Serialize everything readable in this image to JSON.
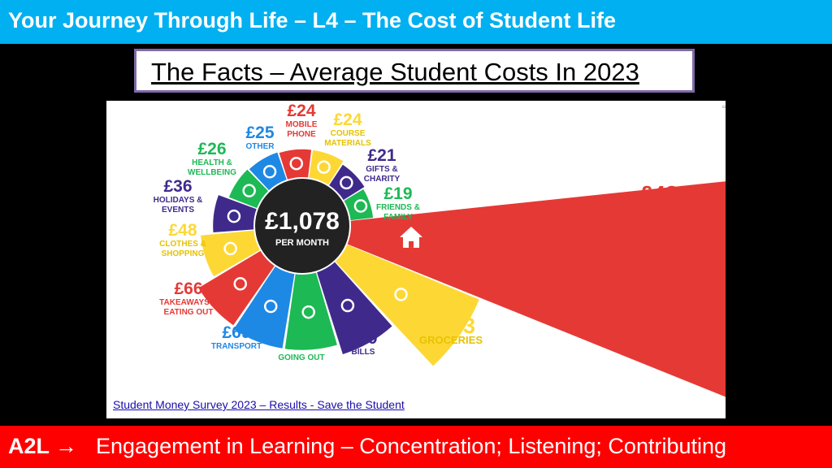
{
  "header": {
    "title": "Your Journey Through Life –  L4 – The Cost of Student Life",
    "subtitle": "The Facts – Average Student Costs In 2023",
    "bg_color": "#00b0f0"
  },
  "infographic": {
    "total": {
      "amount": "£1,078",
      "label": "PER MONTH"
    },
    "segments": [
      {
        "amount": "£439",
        "label": [
          "RENT"
        ],
        "icon": "house-icon",
        "color": "#e53935",
        "value": 439
      },
      {
        "amount": "£133",
        "label": [
          "GROCERIES"
        ],
        "icon": "basket-icon",
        "color": "#fdd835",
        "value": 133
      },
      {
        "amount": "£79",
        "label": [
          "BILLS"
        ],
        "icon": "lightbulb-icon",
        "color": "#3f2a8c",
        "value": 79
      },
      {
        "amount": "£69",
        "label": [
          "GOING OUT"
        ],
        "icon": "cocktail-icon",
        "color": "#1db954",
        "value": 69
      },
      {
        "amount": "£69",
        "label": [
          "TRANSPORT"
        ],
        "icon": "bus-icon",
        "color": "#1e88e5",
        "value": 69
      },
      {
        "amount": "£66",
        "label": [
          "TAKEAWAYS &",
          "EATING OUT"
        ],
        "icon": "takeaway-box-icon",
        "color": "#e53935",
        "value": 66
      },
      {
        "amount": "£48",
        "label": [
          "CLOTHES &",
          "SHOPPING"
        ],
        "icon": "tshirt-icon",
        "color": "#fdd835",
        "value": 48
      },
      {
        "amount": "£36",
        "label": [
          "HOLIDAYS &",
          "EVENTS"
        ],
        "icon": "sun-icon",
        "color": "#3f2a8c",
        "value": 36
      },
      {
        "amount": "£26",
        "label": [
          "HEALTH &",
          "WELLBEING"
        ],
        "icon": "health-cross-icon",
        "color": "#1db954",
        "value": 26
      },
      {
        "amount": "£25",
        "label": [
          "OTHER"
        ],
        "icon": "dots-icon",
        "color": "#1e88e5",
        "value": 25
      },
      {
        "amount": "£24",
        "label": [
          "MOBILE",
          "PHONE"
        ],
        "icon": "phone-icon",
        "color": "#e53935",
        "value": 24
      },
      {
        "amount": "£24",
        "label": [
          "COURSE",
          "MATERIALS"
        ],
        "icon": "book-icon",
        "color": "#fdd835",
        "value": 24
      },
      {
        "amount": "£21",
        "label": [
          "GIFTS &",
          "CHARITY"
        ],
        "icon": "gift-icon",
        "color": "#3f2a8c",
        "value": 21
      },
      {
        "amount": "£19",
        "label": [
          "FRIENDS &",
          "FAMILY"
        ],
        "icon": "heart-icon",
        "color": "#1db954",
        "value": 19
      }
    ],
    "source_link": "Student Money Survey 2023 – Results - Save the Student"
  },
  "footer": {
    "a2l": "A2L →",
    "text": "Engagement in Learning – Concentration; Listening; Contributing",
    "bg_color": "#ff0000"
  }
}
